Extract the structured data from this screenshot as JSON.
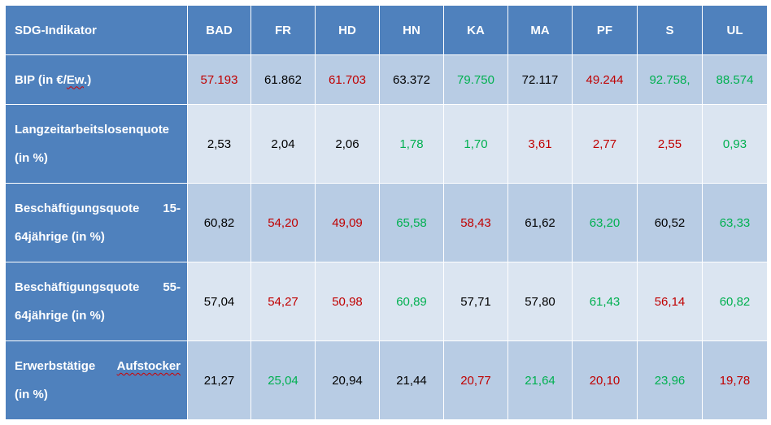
{
  "colors": {
    "header": "#4f81bd",
    "row_dark": "#b8cce4",
    "row_light": "#dbe5f1",
    "red": "#c00000",
    "green": "#00b050"
  },
  "header": {
    "indicator": "SDG-Indikator",
    "columns": [
      "BAD",
      "FR",
      "HD",
      "HN",
      "KA",
      "MA",
      "PF",
      "S",
      "UL"
    ]
  },
  "rows": [
    {
      "label_pre": "BIP (in €/",
      "label_mark": "Ew",
      "label_post": ".)",
      "values": [
        "57.193",
        "61.862",
        "61.703",
        "63.372",
        "79.750",
        "72.117",
        "49.244",
        "92.758,",
        "88.574"
      ],
      "colors": [
        "red",
        "black",
        "red",
        "black",
        "green",
        "black",
        "red",
        "green",
        "green"
      ]
    },
    {
      "label_line1": "Langzeitarbeitslosenquote",
      "label_line2": "(in %)",
      "values": [
        "2,53",
        "2,04",
        "2,06",
        "1,78",
        "1,70",
        "3,61",
        "2,77",
        "2,55",
        "0,93"
      ],
      "colors": [
        "black",
        "black",
        "black",
        "green",
        "green",
        "red",
        "red",
        "red",
        "green"
      ]
    },
    {
      "label_l1a": "Beschäftigungsquote",
      "label_l1b": "15-",
      "label_line2": "64jährige (in %)",
      "values": [
        "60,82",
        "54,20",
        "49,09",
        "65,58",
        "58,43",
        "61,62",
        "63,20",
        "60,52",
        "63,33"
      ],
      "colors": [
        "black",
        "red",
        "red",
        "green",
        "red",
        "black",
        "green",
        "black",
        "green"
      ]
    },
    {
      "label_l1a": "Beschäftigungsquote",
      "label_l1b": "55-",
      "label_line2": "64jährige (in %)",
      "values": [
        "57,04",
        "54,27",
        "50,98",
        "60,89",
        "57,71",
        "57,80",
        "61,43",
        "56,14",
        "60,82"
      ],
      "colors": [
        "black",
        "red",
        "red",
        "green",
        "black",
        "black",
        "green",
        "red",
        "green"
      ]
    },
    {
      "label_l1a": "Erwerbstätige",
      "label_l1b": "Aufstocker",
      "label_line2": "(in %)",
      "values": [
        "21,27",
        "25,04",
        "20,94",
        "21,44",
        "20,77",
        "21,64",
        "20,10",
        "23,96",
        "19,78"
      ],
      "colors": [
        "black",
        "green",
        "black",
        "black",
        "red",
        "green",
        "red",
        "green",
        "red"
      ]
    }
  ]
}
